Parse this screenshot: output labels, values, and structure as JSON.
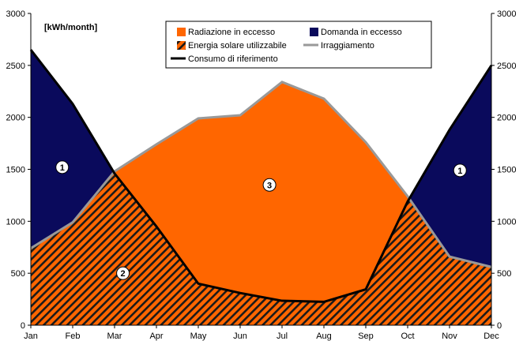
{
  "chart_data": {
    "type": "area",
    "unit_label": "[kWh/month]",
    "categories": [
      "Jan",
      "Feb",
      "Mar",
      "Apr",
      "May",
      "Jun",
      "Jul",
      "Aug",
      "Sep",
      "Oct",
      "Nov",
      "Dec"
    ],
    "ylim": [
      0,
      3000
    ],
    "yticks": [
      0,
      500,
      1000,
      1500,
      2000,
      2500,
      3000
    ],
    "secondary_y_axis": true,
    "series": [
      {
        "name": "Irraggiamento",
        "values": [
          740,
          990,
          1480,
          1740,
          1990,
          2020,
          2340,
          2180,
          1760,
          1240,
          660,
          560
        ]
      },
      {
        "name": "Consumo di riferimento",
        "values": [
          2650,
          2130,
          1460,
          950,
          400,
          310,
          235,
          225,
          345,
          1190,
          1880,
          2500
        ]
      }
    ],
    "area_fills": [
      {
        "name": "Radiazione in eccesso",
        "color": "#FF6600"
      },
      {
        "name": "Domanda in eccesso",
        "color": "#0A0A5C"
      },
      {
        "name": "Energia solare utilizzabile",
        "color": "#FF6600",
        "pattern": "diagonal-hatch"
      }
    ],
    "line_colors": {
      "Irraggiamento": "#999999",
      "Consumo di riferimento": "#000000"
    },
    "legend_position": "top-center",
    "markers": [
      {
        "label": "1",
        "x": 0.75,
        "y": 1520
      },
      {
        "label": "2",
        "x": 2.2,
        "y": 500
      },
      {
        "label": "3",
        "x": 5.7,
        "y": 1350
      },
      {
        "label": "1",
        "x": 10.25,
        "y": 1490
      }
    ],
    "grid": false
  }
}
